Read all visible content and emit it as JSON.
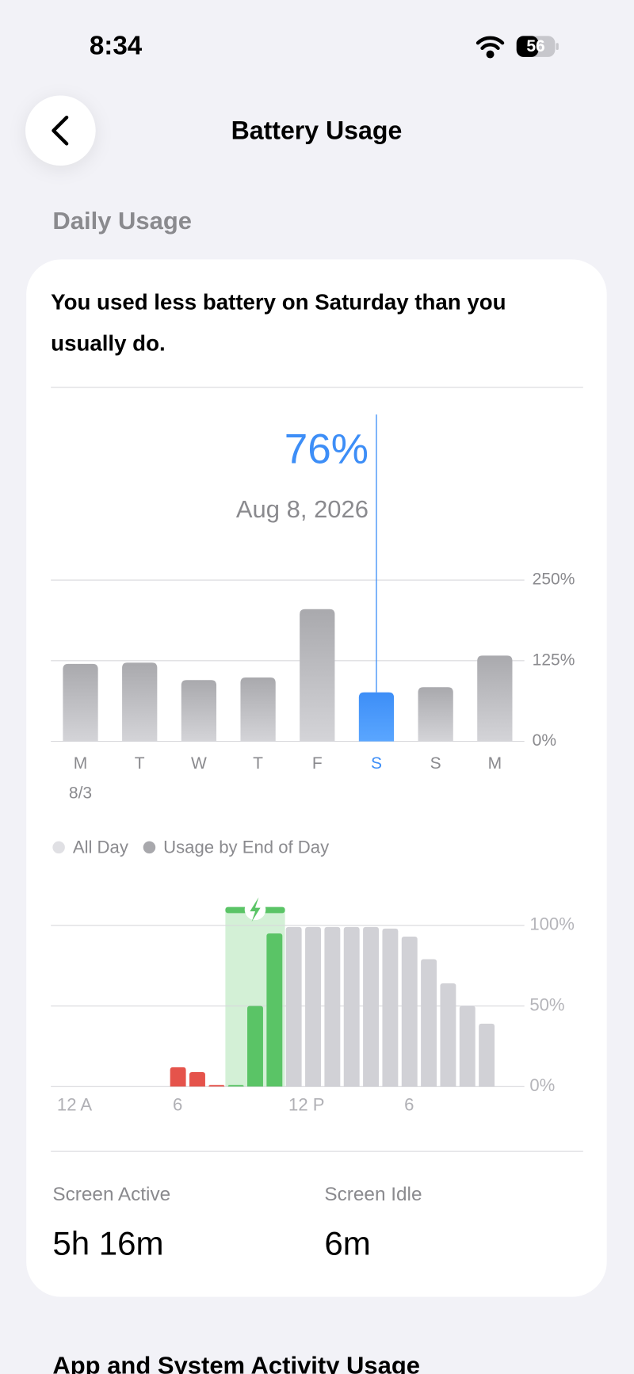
{
  "status_bar": {
    "time": "8:34",
    "battery": "56"
  },
  "header": {
    "title": "Battery Usage"
  },
  "section_title": "Daily Usage",
  "card": {
    "message": "You used less battery on Saturday than you usually do."
  },
  "chart_data": [
    {
      "type": "bar",
      "categories": [
        "M",
        "T",
        "W",
        "T",
        "F",
        "S",
        "S",
        "M"
      ],
      "date_label": "8/3",
      "values": [
        120,
        122,
        95,
        99,
        205,
        76,
        84,
        133
      ],
      "selected_index": 5,
      "selected_label": "76%",
      "selected_date": "Aug 8, 2026",
      "color": "#a9a9ad",
      "highlight_color": "#3d8ef7",
      "ylim": [
        0,
        250
      ],
      "yticks": [
        {
          "value": 0,
          "label": "0%"
        },
        {
          "value": 125,
          "label": "125%"
        },
        {
          "value": 250,
          "label": "250%"
        }
      ],
      "grid": true,
      "legend": [
        {
          "name": "All Day",
          "color": "#e0e0e4"
        },
        {
          "name": "Usage by End of Day",
          "color": "#a8a8ac"
        }
      ]
    },
    {
      "type": "bar",
      "categories": [
        "12 A",
        null,
        null,
        null,
        null,
        null,
        "6",
        null,
        null,
        null,
        null,
        null,
        "12 P",
        null,
        null,
        null,
        null,
        null,
        "6",
        null,
        null,
        null,
        null,
        null
      ],
      "values": [
        null,
        null,
        null,
        null,
        null,
        null,
        12,
        9,
        1,
        1,
        50,
        95,
        99,
        99,
        99,
        99,
        99,
        98,
        93,
        79,
        64,
        50,
        39,
        null
      ],
      "colors": [
        null,
        null,
        null,
        null,
        null,
        null,
        "#e5534b",
        "#e5534b",
        "#e5534b",
        "#5ac466",
        "#5ac466",
        "#5ac466",
        "#d1d1d6",
        "#d1d1d6",
        "#d1d1d6",
        "#d1d1d6",
        "#d1d1d6",
        "#d1d1d6",
        "#d1d1d6",
        "#d1d1d6",
        "#d1d1d6",
        "#d1d1d6",
        "#d1d1d6",
        null
      ],
      "charging_hours": [
        9,
        11
      ],
      "charging_color": "#d3f0d6",
      "ylim": [
        0,
        100
      ],
      "yticks": [
        {
          "value": 0,
          "label": "0%"
        },
        {
          "value": 50,
          "label": "50%"
        },
        {
          "value": 100,
          "label": "100%"
        }
      ],
      "grid": true
    }
  ],
  "stats": [
    {
      "label": "Screen Active",
      "value": "5h 16m"
    },
    {
      "label": "Screen Idle",
      "value": "6m"
    }
  ],
  "footer_title": "App and System Activity Usage"
}
